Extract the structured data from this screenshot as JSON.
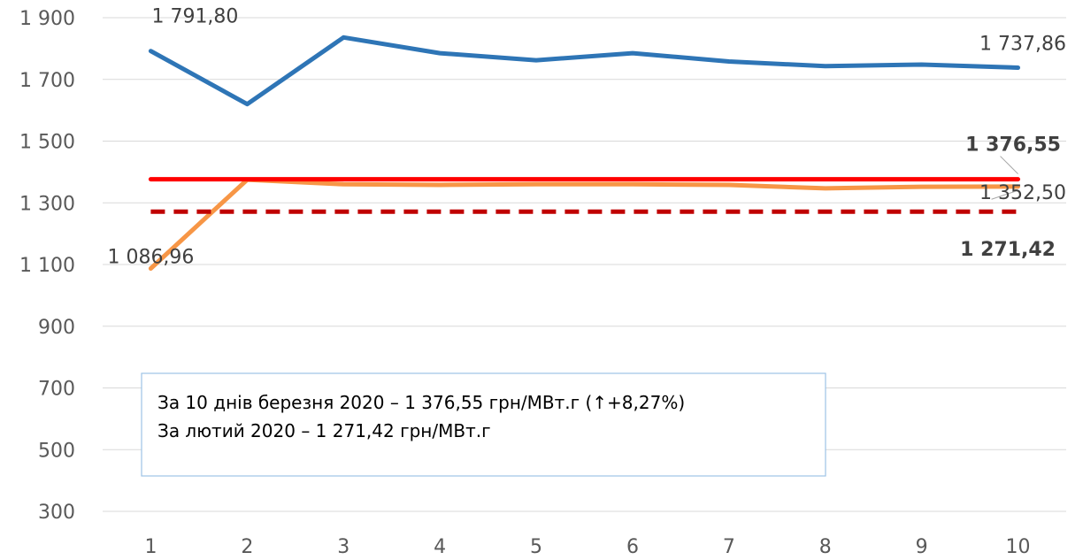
{
  "chart_data": {
    "type": "line",
    "x": [
      1,
      2,
      3,
      4,
      5,
      6,
      7,
      8,
      9,
      10
    ],
    "ylim": [
      300,
      1900
    ],
    "yticks": [
      300,
      500,
      700,
      900,
      1100,
      1300,
      1500,
      1700,
      1900
    ],
    "ytick_labels": [
      "300",
      "500",
      "700",
      "900",
      "1 100",
      "1 300",
      "1 500",
      "1 700",
      "1 900"
    ],
    "xtick_labels": [
      "1",
      "2",
      "3",
      "4",
      "5",
      "6",
      "7",
      "8",
      "9",
      "10"
    ],
    "grid": true,
    "series": [
      {
        "color": "#2E75B6",
        "style": "solid",
        "values": [
          1791.8,
          1620,
          1836,
          1785,
          1762,
          1785,
          1758,
          1743,
          1748,
          1737.86
        ]
      },
      {
        "color": "#F79646",
        "style": "solid",
        "values": [
          1086.96,
          1375,
          1360,
          1358,
          1360,
          1360,
          1358,
          1347,
          1352,
          1352.5
        ]
      },
      {
        "color": "#FF0000",
        "style": "solid",
        "values": [
          1376.55,
          1376.55,
          1376.55,
          1376.55,
          1376.55,
          1376.55,
          1376.55,
          1376.55,
          1376.55,
          1376.55
        ]
      },
      {
        "color": "#C00000",
        "style": "dashed",
        "values": [
          1271.42,
          1271.42,
          1271.42,
          1271.42,
          1271.42,
          1271.42,
          1271.42,
          1271.42,
          1271.42,
          1271.42
        ]
      }
    ],
    "data_labels": [
      {
        "text": "1 791,80",
        "bold": false
      },
      {
        "text": "1 737,86",
        "bold": false
      },
      {
        "text": "1 376,55",
        "bold": true
      },
      {
        "text": "1 352,50",
        "bold": false
      },
      {
        "text": "1 271,42",
        "bold": true
      },
      {
        "text": "1 086,96",
        "bold": false
      }
    ],
    "annotation": {
      "lines": [
        "За 10 днів березня 2020 – 1 376,55 грн/МВт.г (↑+8,27%)",
        "За лютий 2020 – 1 271,42 грн/МВт.г"
      ]
    }
  }
}
